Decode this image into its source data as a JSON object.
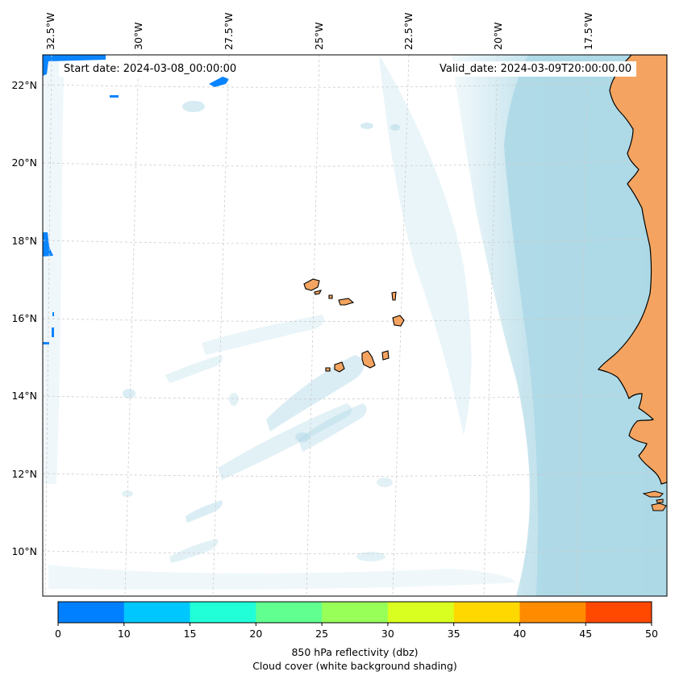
{
  "map": {
    "start_date_label": "Start date: 2024-03-08_00:00:00",
    "valid_date_label": "Valid_date: 2024-03-09T20:00:00.00",
    "lon_labels": [
      "32.5°W",
      "30°W",
      "27.5°W",
      "25°W",
      "22.5°W",
      "20°W",
      "17.5°W"
    ],
    "lat_labels": [
      "22°N",
      "20°N",
      "18°N",
      "16°N",
      "14°N",
      "12°N",
      "10°N"
    ],
    "colors": {
      "land": "#f4a460",
      "cloud": "#add8e6",
      "ocean": "#ffffff",
      "coast": "#000000",
      "grid": "#cccccc"
    }
  },
  "colorbar": {
    "ticks": [
      "0",
      "10",
      "15",
      "20",
      "25",
      "30",
      "35",
      "40",
      "45",
      "50"
    ],
    "colors": [
      "#0080ff",
      "#00c8ff",
      "#20ffd8",
      "#60ff90",
      "#98ff58",
      "#d8ff20",
      "#ffd800",
      "#ff8c00",
      "#ff4800"
    ],
    "label": "850 hPa reflectivity (dbz)",
    "sublabel": "Cloud cover (white background shading)"
  }
}
